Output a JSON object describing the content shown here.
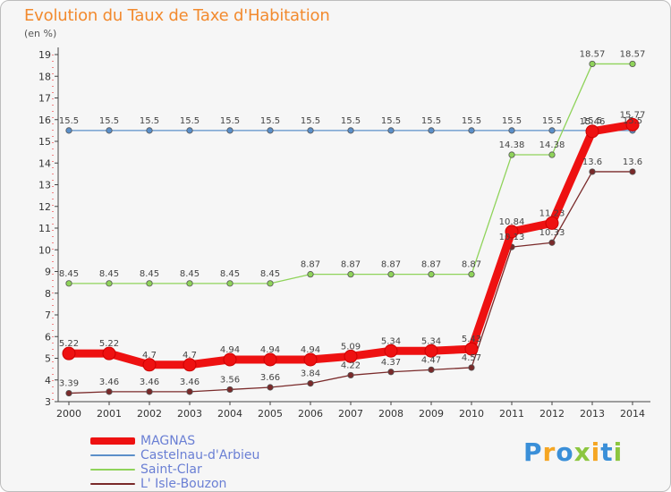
{
  "title": "Evolution du Taux de Taxe d'Habitation",
  "unit_label": "(en %)",
  "logo_letters": [
    {
      "ch": "P",
      "color": "#3a8fd8"
    },
    {
      "ch": "r",
      "color": "#f5a623"
    },
    {
      "ch": "o",
      "color": "#3a8fd8"
    },
    {
      "ch": "x",
      "color": "#8cc63f"
    },
    {
      "ch": "i",
      "color": "#f5a623"
    },
    {
      "ch": "t",
      "color": "#3a8fd8"
    },
    {
      "ch": "i",
      "color": "#8cc63f"
    }
  ],
  "chart_data": {
    "type": "line",
    "title": "Evolution du Taux de Taxe d'Habitation",
    "ylabel": "(en %)",
    "xlabel": "",
    "x": [
      "2000",
      "2001",
      "2002",
      "2003",
      "2004",
      "2005",
      "2006",
      "2007",
      "2008",
      "2009",
      "2010",
      "2011",
      "2012",
      "2013",
      "2014"
    ],
    "ylim": [
      3,
      19
    ],
    "yticks": [
      3,
      4,
      5,
      6,
      7,
      8,
      9,
      10,
      11,
      12,
      13,
      14,
      15,
      16,
      17,
      18,
      19
    ],
    "grid": false,
    "legend_position": "bottom-left",
    "series": [
      {
        "name": "MAGNAS",
        "color": "#ee1111",
        "emphasis": true,
        "values": [
          5.22,
          5.22,
          4.7,
          4.7,
          4.94,
          4.94,
          4.94,
          5.09,
          5.34,
          5.34,
          5.43,
          10.84,
          11.23,
          15.46,
          15.77
        ],
        "labels": [
          "5.22",
          "5.22",
          "4.7",
          "4.7",
          "4.94",
          "4.94",
          "4.94",
          "5.09",
          "5.34",
          "5.34",
          "5.43",
          "10.84",
          "11.23",
          "15.46",
          "15.77"
        ]
      },
      {
        "name": "Castelnau-d'Arbieu",
        "color": "#5b8fc9",
        "values": [
          15.5,
          15.5,
          15.5,
          15.5,
          15.5,
          15.5,
          15.5,
          15.5,
          15.5,
          15.5,
          15.5,
          15.5,
          15.5,
          15.5,
          15.5
        ],
        "labels": [
          "15.5",
          "15.5",
          "15.5",
          "15.5",
          "15.5",
          "15.5",
          "15.5",
          "15.5",
          "15.5",
          "15.5",
          "15.5",
          "15.5",
          "15.5",
          "15.5",
          "15.5"
        ]
      },
      {
        "name": "Saint-Clar",
        "color": "#8fd35a",
        "values": [
          8.45,
          8.45,
          8.45,
          8.45,
          8.45,
          8.45,
          8.87,
          8.87,
          8.87,
          8.87,
          8.87,
          14.38,
          14.38,
          18.57,
          18.57
        ],
        "labels": [
          "8.45",
          "8.45",
          "8.45",
          "8.45",
          "8.45",
          "8.45",
          "8.87",
          "8.87",
          "8.87",
          "8.87",
          "8.87",
          "14.38",
          "14.38",
          "18.57",
          "18.57"
        ]
      },
      {
        "name": "L' Isle-Bouzon",
        "color": "#7a2a2a",
        "values": [
          3.39,
          3.46,
          3.46,
          3.46,
          3.56,
          3.66,
          3.84,
          4.22,
          4.37,
          4.47,
          4.57,
          10.13,
          10.33,
          13.6,
          13.6
        ],
        "labels": [
          "3.39",
          "3.46",
          "3.46",
          "3.46",
          "3.56",
          "3.66",
          "3.84",
          "4.22",
          "4.37",
          "4.47",
          "4.57",
          "10.13",
          "10.33",
          "13.6",
          "13.6"
        ]
      }
    ]
  }
}
